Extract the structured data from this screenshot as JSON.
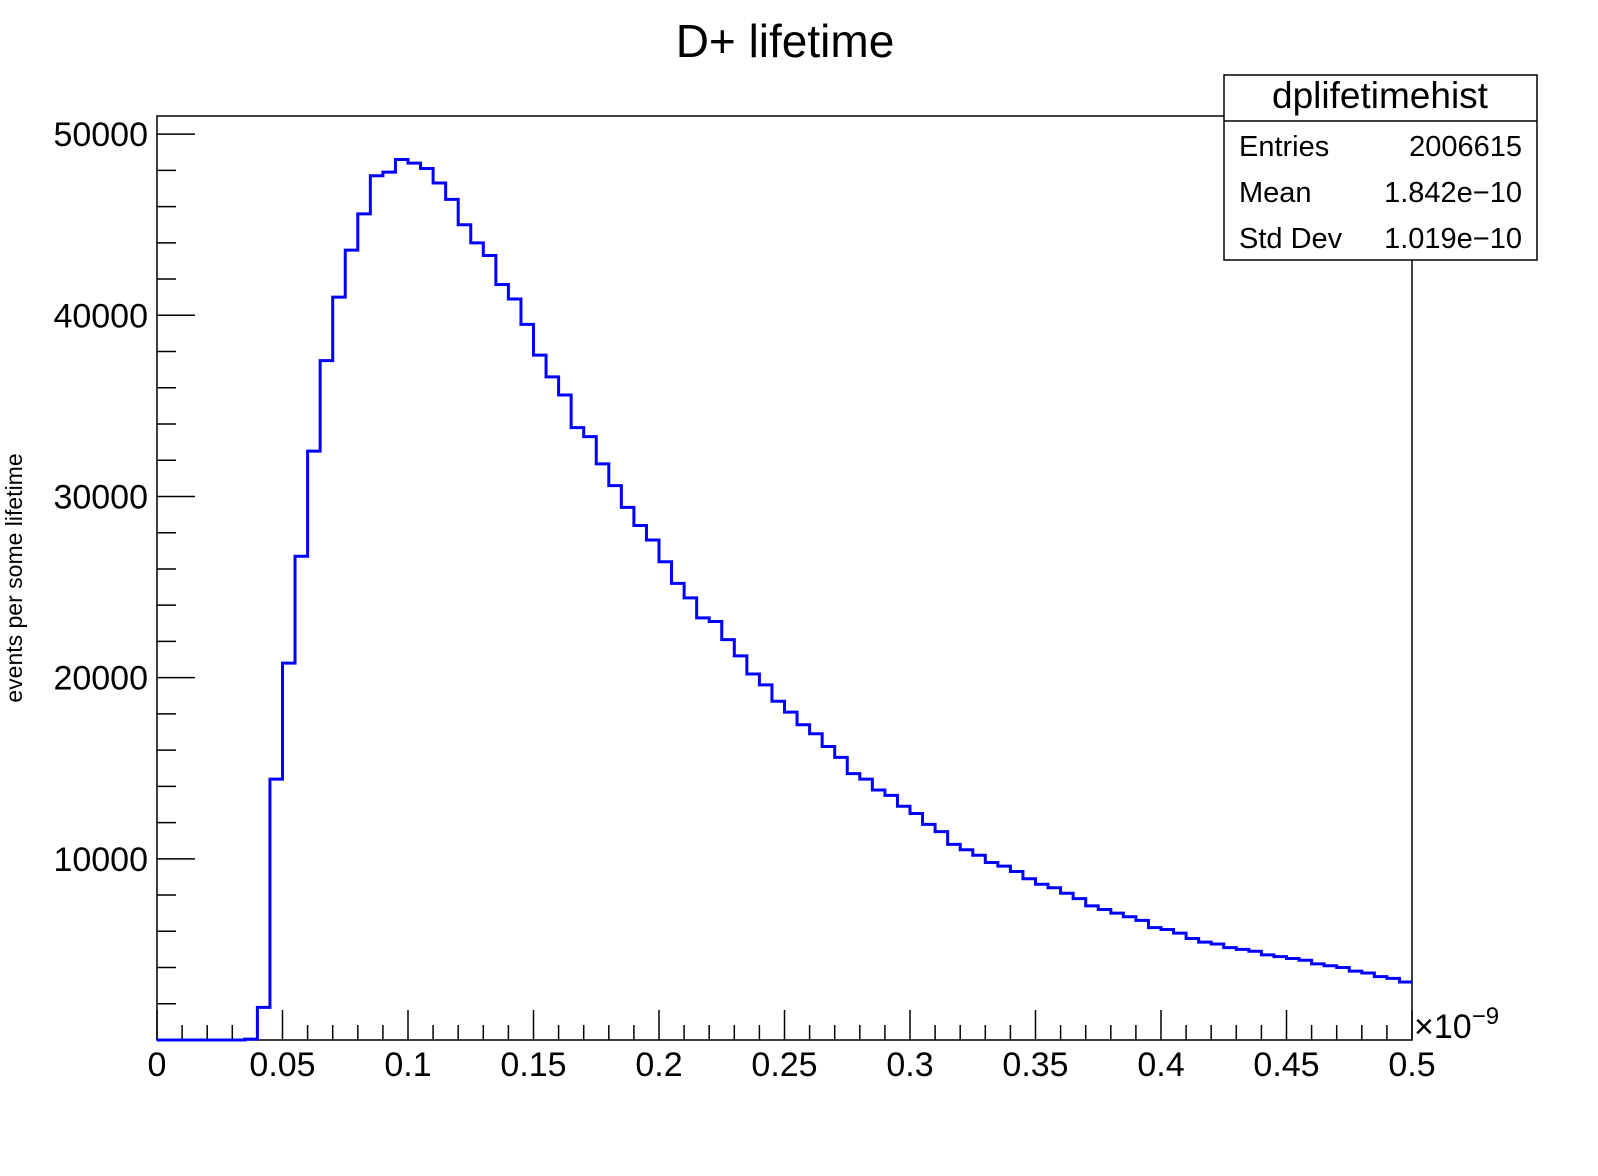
{
  "chart_data": {
    "type": "histogram",
    "title": "D+ lifetime",
    "xlabel": "",
    "ylabel": "events per some lifetime",
    "x_exponent": {
      "base": "×10",
      "power": "−9"
    },
    "xlim": [
      0,
      0.5
    ],
    "ylim": [
      0,
      51000
    ],
    "x_ticks": [
      {
        "value": 0,
        "label": "0"
      },
      {
        "value": 0.05,
        "label": "0.05"
      },
      {
        "value": 0.1,
        "label": "0.1"
      },
      {
        "value": 0.15,
        "label": "0.15"
      },
      {
        "value": 0.2,
        "label": "0.2"
      },
      {
        "value": 0.25,
        "label": "0.25"
      },
      {
        "value": 0.3,
        "label": "0.3"
      },
      {
        "value": 0.35,
        "label": "0.35"
      },
      {
        "value": 0.4,
        "label": "0.4"
      },
      {
        "value": 0.45,
        "label": "0.45"
      },
      {
        "value": 0.5,
        "label": "0.5"
      }
    ],
    "y_ticks": [
      {
        "value": 10000,
        "label": "10000"
      },
      {
        "value": 20000,
        "label": "20000"
      },
      {
        "value": 30000,
        "label": "30000"
      },
      {
        "value": 40000,
        "label": "40000"
      },
      {
        "value": 50000,
        "label": "50000"
      }
    ],
    "bin_width": 0.005,
    "x_start": 0,
    "values": [
      0,
      0,
      0,
      0,
      0,
      0,
      0,
      50,
      1800,
      14400,
      20800,
      26700,
      32500,
      37500,
      41000,
      43600,
      45600,
      47700,
      47900,
      48600,
      48400,
      48100,
      47300,
      46400,
      45000,
      44000,
      43300,
      41700,
      40900,
      39500,
      37800,
      36600,
      35600,
      33800,
      33300,
      31800,
      30600,
      29400,
      28400,
      27600,
      26400,
      25200,
      24400,
      23300,
      23100,
      22100,
      21200,
      20200,
      19600,
      18700,
      18100,
      17400,
      16900,
      16200,
      15600,
      14700,
      14400,
      13800,
      13500,
      12900,
      12500,
      11900,
      11500,
      10800,
      10500,
      10200,
      9800,
      9600,
      9300,
      8900,
      8600,
      8400,
      8100,
      7800,
      7400,
      7200,
      7000,
      6800,
      6600,
      6200,
      6100,
      5900,
      5600,
      5400,
      5300,
      5100,
      5000,
      4900,
      4700,
      4600,
      4500,
      4400,
      4200,
      4100,
      4000,
      3800,
      3700,
      3500,
      3400,
      3200,
      3000
    ],
    "line_color": "#0000ff",
    "legend": null,
    "stats_box": {
      "title": "dplifetimehist",
      "rows": [
        {
          "label": "Entries",
          "value": "2006615"
        },
        {
          "label": "Mean",
          "value": "1.842e−10"
        },
        {
          "label": "Std Dev",
          "value": "1.019e−10"
        }
      ]
    }
  }
}
